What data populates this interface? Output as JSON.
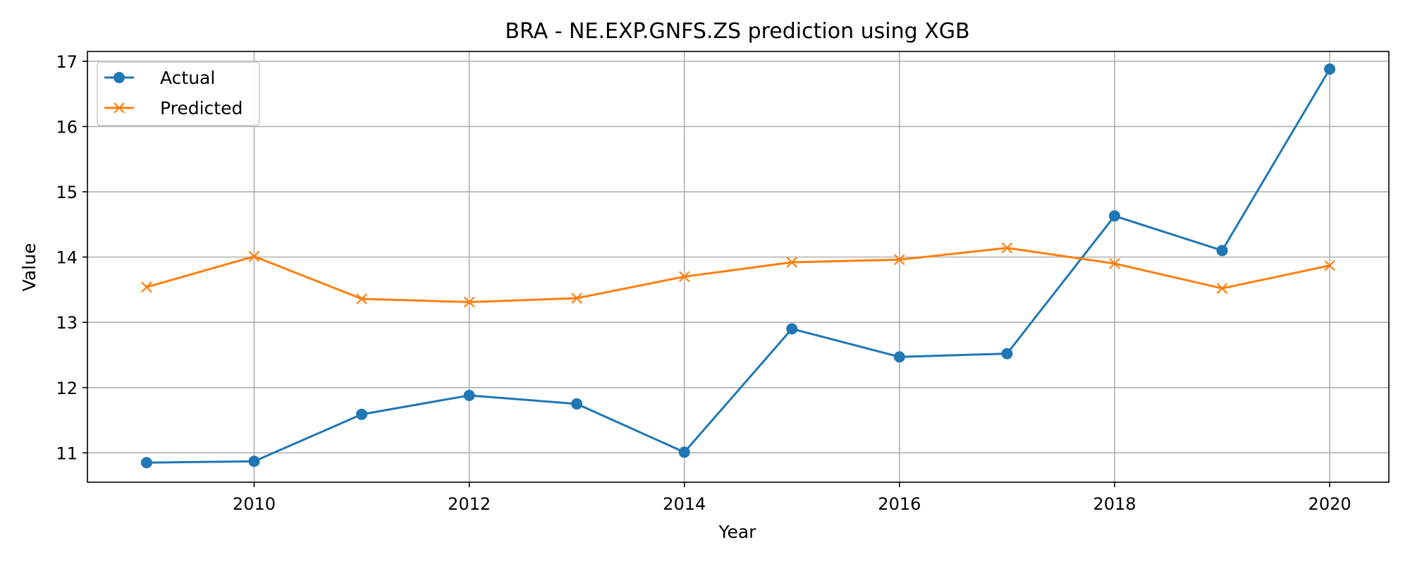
{
  "chart_data": {
    "type": "line",
    "title": "BRA - NE.EXP.GNFS.ZS prediction using XGB",
    "xlabel": "Year",
    "ylabel": "Value",
    "x": [
      2009,
      2010,
      2011,
      2012,
      2013,
      2014,
      2015,
      2016,
      2017,
      2018,
      2019,
      2020
    ],
    "xlim": [
      2008.45,
      2020.55
    ],
    "ylim": [
      10.55,
      17.15
    ],
    "xticks": [
      2010,
      2012,
      2014,
      2016,
      2018,
      2020
    ],
    "yticks": [
      11,
      12,
      13,
      14,
      15,
      16,
      17
    ],
    "grid": true,
    "legend_position": "upper-left",
    "series": [
      {
        "name": "Actual",
        "marker": "circle",
        "color": "#1f77b4",
        "values": [
          10.85,
          10.87,
          11.59,
          11.88,
          11.75,
          11.01,
          12.9,
          12.47,
          12.52,
          14.63,
          14.1,
          16.88
        ]
      },
      {
        "name": "Predicted",
        "marker": "x",
        "color": "#ff7f0e",
        "values": [
          13.54,
          14.01,
          13.36,
          13.31,
          13.37,
          13.7,
          13.92,
          13.96,
          14.14,
          13.9,
          13.52,
          13.87
        ]
      }
    ]
  }
}
